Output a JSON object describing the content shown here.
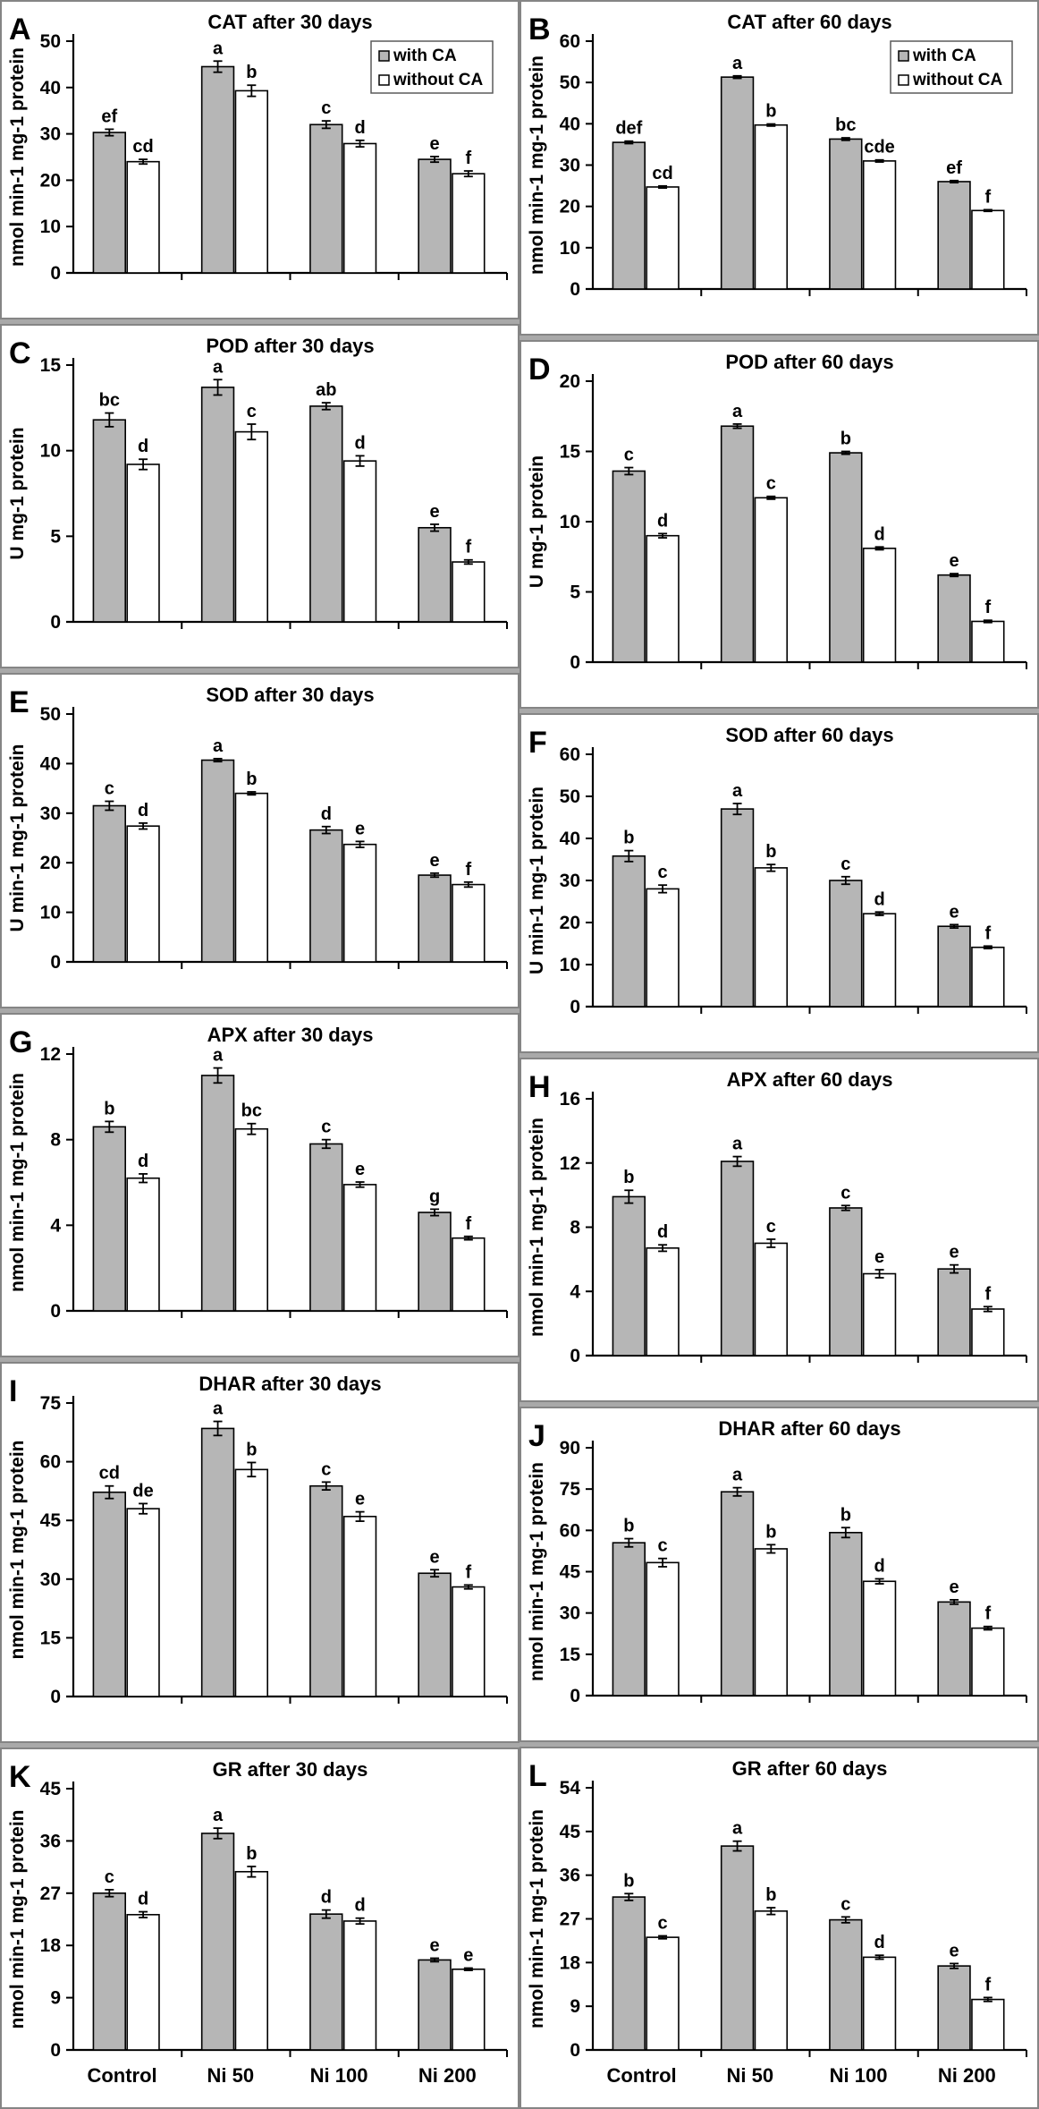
{
  "figure_name": "antioxidant-enzyme-bar-charts",
  "chart_data": {
    "type": "bar",
    "categories": [
      "Control",
      "Ni 50",
      "Ni 100",
      "Ni 200"
    ],
    "legend": {
      "with_label": "with CA",
      "without_label": "without CA",
      "position": "top-right (panels A and B only)"
    },
    "colors": {
      "with_ca_fill": "#b6b6b6",
      "without_ca_fill": "#ffffff",
      "bar_border": "#000000",
      "axis": "#000000",
      "panel_border": "#858585",
      "figure_background": "#a9a9a9"
    },
    "grid": "off",
    "panels": [
      {
        "letter": "A",
        "title": "CAT after 30 days",
        "ylabel": "nmol min-1 mg-1 protein",
        "ymax": 50,
        "ystep": 10,
        "show_legend": true,
        "show_xlabels": false,
        "with_ca": {
          "values": [
            30.3,
            44.5,
            32.0,
            24.5
          ],
          "errors": [
            0.7,
            1.2,
            0.8,
            0.6
          ],
          "letters": [
            "ef",
            "a",
            "c",
            "e"
          ]
        },
        "without_ca": {
          "values": [
            24.0,
            39.3,
            27.9,
            21.4
          ],
          "errors": [
            0.5,
            1.2,
            0.7,
            0.6
          ],
          "letters": [
            "cd",
            "b",
            "d",
            "f"
          ]
        }
      },
      {
        "letter": "B",
        "title": "CAT after 60 days",
        "ylabel": "nmol min-1 mg-1 protein",
        "ymax": 60,
        "ystep": 10,
        "show_legend": true,
        "show_xlabels": false,
        "with_ca": {
          "values": [
            35.5,
            51.3,
            36.3,
            26.0
          ],
          "errors": [
            0.3,
            0.3,
            0.3,
            0.25
          ],
          "letters": [
            "def",
            "a",
            "bc",
            "ef"
          ]
        },
        "without_ca": {
          "values": [
            24.7,
            39.7,
            31.0,
            19.0
          ],
          "errors": [
            0.25,
            0.25,
            0.25,
            0.2
          ],
          "letters": [
            "cd",
            "b",
            "cde",
            "f"
          ]
        }
      },
      {
        "letter": "C",
        "title": "POD after 30 days",
        "ylabel": "U mg-1 protein",
        "ymax": 15,
        "ystep": 5,
        "show_legend": false,
        "show_xlabels": false,
        "with_ca": {
          "values": [
            11.8,
            13.7,
            12.6,
            5.5
          ],
          "errors": [
            0.4,
            0.45,
            0.2,
            0.2
          ],
          "letters": [
            "bc",
            "a",
            "ab",
            "e"
          ]
        },
        "without_ca": {
          "values": [
            9.2,
            11.1,
            9.4,
            3.5
          ],
          "errors": [
            0.3,
            0.45,
            0.3,
            0.12
          ],
          "letters": [
            "d",
            "c",
            "d",
            "f"
          ]
        }
      },
      {
        "letter": "D",
        "title": "POD after 60 days",
        "ylabel": "U mg-1 protein",
        "ymax": 20,
        "ystep": 5,
        "show_legend": false,
        "show_xlabels": false,
        "with_ca": {
          "values": [
            13.6,
            16.8,
            14.9,
            6.2
          ],
          "errors": [
            0.25,
            0.15,
            0.1,
            0.1
          ],
          "letters": [
            "c",
            "a",
            "b",
            "e"
          ]
        },
        "without_ca": {
          "values": [
            9.0,
            11.7,
            8.1,
            2.9
          ],
          "errors": [
            0.15,
            0.1,
            0.1,
            0.08
          ],
          "letters": [
            "d",
            "c",
            "d",
            "f"
          ]
        }
      },
      {
        "letter": "E",
        "title": "SOD after 30 days",
        "ylabel": "U min-1 mg-1 protein",
        "ymax": 50,
        "ystep": 10,
        "show_legend": false,
        "show_xlabels": false,
        "with_ca": {
          "values": [
            31.5,
            40.7,
            26.6,
            17.5
          ],
          "errors": [
            0.9,
            0.3,
            0.7,
            0.4
          ],
          "letters": [
            "c",
            "a",
            "d",
            "e"
          ]
        },
        "without_ca": {
          "values": [
            27.4,
            34.0,
            23.7,
            15.6
          ],
          "errors": [
            0.6,
            0.3,
            0.6,
            0.5
          ],
          "letters": [
            "d",
            "b",
            "e",
            "f"
          ]
        }
      },
      {
        "letter": "F",
        "title": "SOD after 60 days",
        "ylabel": "U min-1 mg-1 protein",
        "ymax": 60,
        "ystep": 10,
        "show_legend": false,
        "show_xlabels": false,
        "with_ca": {
          "values": [
            35.8,
            47.0,
            30.0,
            19.1
          ],
          "errors": [
            1.3,
            1.3,
            0.9,
            0.4
          ],
          "letters": [
            "b",
            "a",
            "c",
            "e"
          ]
        },
        "without_ca": {
          "values": [
            28.0,
            33.0,
            22.1,
            14.1
          ],
          "errors": [
            0.9,
            0.8,
            0.4,
            0.3
          ],
          "letters": [
            "c",
            "b",
            "d",
            "f"
          ]
        }
      },
      {
        "letter": "G",
        "title": "APX after 30 days",
        "ylabel": "nmol min-1 mg-1 protein",
        "ymax": 12,
        "ystep": 4,
        "show_legend": false,
        "show_xlabels": false,
        "with_ca": {
          "values": [
            8.6,
            11.0,
            7.8,
            4.6
          ],
          "errors": [
            0.25,
            0.35,
            0.2,
            0.15
          ],
          "letters": [
            "b",
            "a",
            "c",
            "g"
          ]
        },
        "without_ca": {
          "values": [
            6.2,
            8.5,
            5.9,
            3.4
          ],
          "errors": [
            0.2,
            0.25,
            0.12,
            0.08
          ],
          "letters": [
            "d",
            "bc",
            "e",
            "f"
          ]
        }
      },
      {
        "letter": "H",
        "title": "APX after 60 days",
        "ylabel": "nmol min-1 mg-1 protein",
        "ymax": 16,
        "ystep": 4,
        "show_legend": false,
        "show_xlabels": false,
        "with_ca": {
          "values": [
            9.9,
            12.1,
            9.2,
            5.4
          ],
          "errors": [
            0.4,
            0.3,
            0.15,
            0.25
          ],
          "letters": [
            "b",
            "a",
            "c",
            "e"
          ]
        },
        "without_ca": {
          "values": [
            6.7,
            7.0,
            5.1,
            2.9
          ],
          "errors": [
            0.2,
            0.25,
            0.25,
            0.15
          ],
          "letters": [
            "d",
            "c",
            "e",
            "f"
          ]
        }
      },
      {
        "letter": "I",
        "title": "DHAR after 30 days",
        "ylabel": "nmol min-1 mg-1 protein",
        "ymax": 75,
        "ystep": 15,
        "show_legend": false,
        "show_xlabels": false,
        "with_ca": {
          "values": [
            52.2,
            68.5,
            53.8,
            31.5
          ],
          "errors": [
            1.6,
            1.8,
            1.0,
            0.9
          ],
          "letters": [
            "cd",
            "a",
            "c",
            "e"
          ]
        },
        "without_ca": {
          "values": [
            48.0,
            58.0,
            46.0,
            28.0
          ],
          "errors": [
            1.3,
            1.8,
            1.2,
            0.5
          ],
          "letters": [
            "de",
            "b",
            "e",
            "f"
          ]
        }
      },
      {
        "letter": "J",
        "title": "DHAR after 60 days",
        "ylabel": "nmol min-1 mg-1 protein",
        "ymax": 90,
        "ystep": 15,
        "show_legend": false,
        "show_xlabels": false,
        "with_ca": {
          "values": [
            55.5,
            74.0,
            59.2,
            34.0
          ],
          "errors": [
            1.5,
            1.5,
            1.8,
            0.8
          ],
          "letters": [
            "b",
            "a",
            "b",
            "e"
          ]
        },
        "without_ca": {
          "values": [
            48.3,
            53.3,
            41.5,
            24.5
          ],
          "errors": [
            1.5,
            1.5,
            0.9,
            0.6
          ],
          "letters": [
            "c",
            "b",
            "d",
            "f"
          ]
        }
      },
      {
        "letter": "K",
        "title": "GR after 30 days",
        "ylabel": "nmol min-1 mg-1 protein",
        "ymax": 45,
        "ystep": 9,
        "show_legend": false,
        "show_xlabels": true,
        "with_ca": {
          "values": [
            27.0,
            37.3,
            23.4,
            15.5
          ],
          "errors": [
            0.6,
            0.9,
            0.7,
            0.3
          ],
          "letters": [
            "c",
            "a",
            "d",
            "e"
          ]
        },
        "without_ca": {
          "values": [
            23.3,
            30.7,
            22.2,
            13.9
          ],
          "errors": [
            0.5,
            0.9,
            0.5,
            0.2
          ],
          "letters": [
            "d",
            "b",
            "d",
            "e"
          ]
        }
      },
      {
        "letter": "L",
        "title": "GR after 60 days",
        "ylabel": "nmol min-1 mg-1 protein",
        "ymax": 54,
        "ystep": 9,
        "show_legend": false,
        "show_xlabels": true,
        "with_ca": {
          "values": [
            31.5,
            42.0,
            26.8,
            17.3
          ],
          "errors": [
            0.7,
            1.0,
            0.6,
            0.5
          ],
          "letters": [
            "b",
            "a",
            "c",
            "e"
          ]
        },
        "without_ca": {
          "values": [
            23.2,
            28.6,
            19.1,
            10.4
          ],
          "errors": [
            0.3,
            0.7,
            0.4,
            0.4
          ],
          "letters": [
            "c",
            "b",
            "d",
            "f"
          ]
        }
      }
    ]
  }
}
